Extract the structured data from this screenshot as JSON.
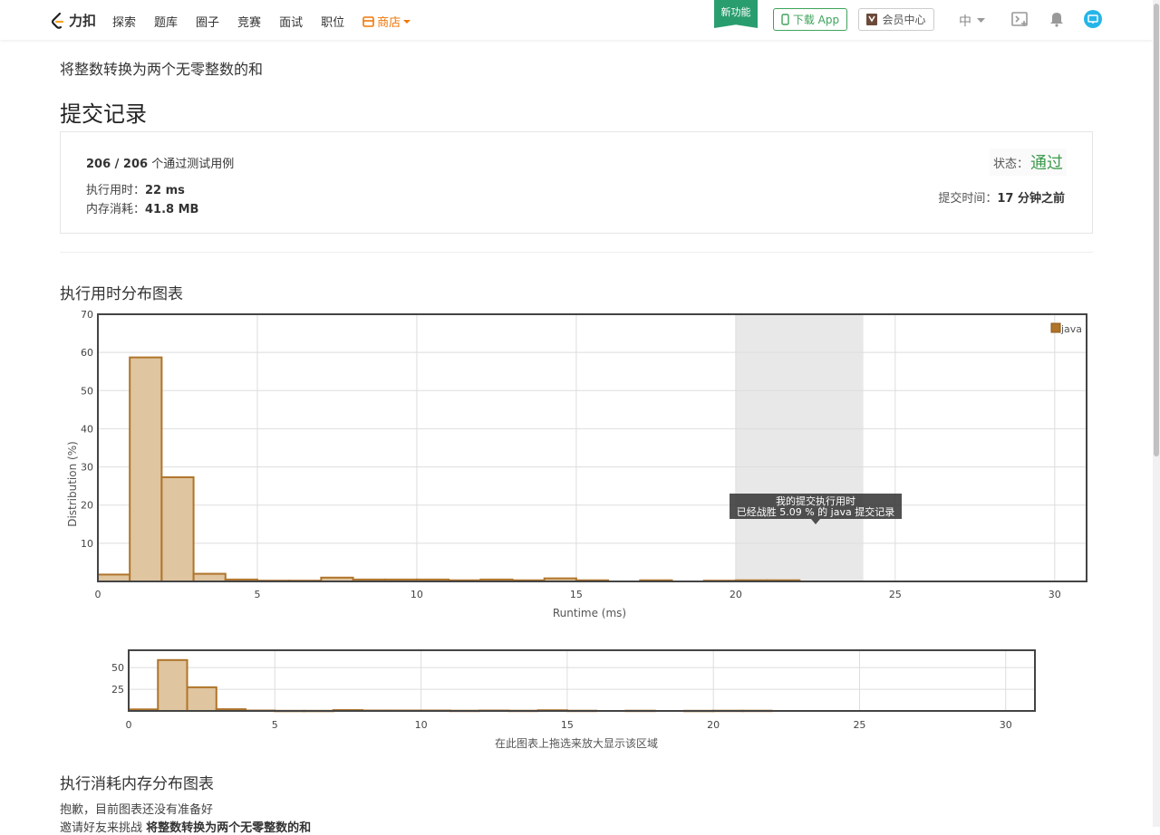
{
  "brand": {
    "name": "力扣"
  },
  "nav": {
    "items": [
      "探索",
      "题库",
      "圈子",
      "竞赛",
      "面试",
      "职位"
    ],
    "store": "商店"
  },
  "header": {
    "new_feature": "新功能",
    "download_app": "下载 App",
    "vip_center": "会员中心",
    "lang": "中"
  },
  "problem": {
    "title": "将整数转换为两个无零整数的和"
  },
  "page": {
    "title": "提交记录"
  },
  "result": {
    "passed": "206 / 206",
    "passed_suffix": "个通过测试用例",
    "runtime_label": "执行用时：",
    "runtime_value": "22 ms",
    "memory_label": "内存消耗：",
    "memory_value": "41.8 MB",
    "status_label": "状态：",
    "status_value": "通过",
    "submit_time_label": "提交时间：",
    "submit_time_value": "17 分钟之前"
  },
  "runtime_section": {
    "title": "执行用时分布图表",
    "nav_hint": "在此图表上拖选来放大显示该区域"
  },
  "memory_section": {
    "title": "执行消耗内存分布图表",
    "sorry": "抱歉，目前图表还没有准备好",
    "invite_prefix": "邀请好友来挑战",
    "invite_problem": "将整数转换为两个无零整数的和"
  },
  "colors": {
    "accent": "#3c9a4c",
    "bar_fill": "#dfc5a0",
    "bar_stroke": "#b0742a",
    "store": "#f0780a"
  },
  "chart_data": [
    {
      "type": "bar",
      "xlabel": "Runtime (ms)",
      "ylabel": "Distribution (%)",
      "xlim": [
        0,
        31
      ],
      "ylim": [
        0,
        70
      ],
      "xticks": [
        0,
        5,
        10,
        15,
        20,
        25,
        30
      ],
      "yticks": [
        10,
        20,
        30,
        40,
        50,
        60,
        70
      ],
      "grid": true,
      "legend": "top-right",
      "series": [
        {
          "name": "java",
          "bins": [
            {
              "x0": 0,
              "x1": 1,
              "y": 1.8
            },
            {
              "x0": 1,
              "x1": 2,
              "y": 58.7
            },
            {
              "x0": 2,
              "x1": 3,
              "y": 27.3
            },
            {
              "x0": 3,
              "x1": 4,
              "y": 2.0
            },
            {
              "x0": 4,
              "x1": 5,
              "y": 0.5
            },
            {
              "x0": 5,
              "x1": 6,
              "y": 0.2
            },
            {
              "x0": 6,
              "x1": 7,
              "y": 0.2
            },
            {
              "x0": 7,
              "x1": 8,
              "y": 1.0
            },
            {
              "x0": 8,
              "x1": 9,
              "y": 0.5
            },
            {
              "x0": 9,
              "x1": 10,
              "y": 0.5
            },
            {
              "x0": 10,
              "x1": 11,
              "y": 0.5
            },
            {
              "x0": 11,
              "x1": 12,
              "y": 0.3
            },
            {
              "x0": 12,
              "x1": 13,
              "y": 0.5
            },
            {
              "x0": 13,
              "x1": 14,
              "y": 0.3
            },
            {
              "x0": 14,
              "x1": 15,
              "y": 0.8
            },
            {
              "x0": 15,
              "x1": 16,
              "y": 0.3
            },
            {
              "x0": 17,
              "x1": 18,
              "y": 0.3
            },
            {
              "x0": 19,
              "x1": 20,
              "y": 0.2
            },
            {
              "x0": 20,
              "x1": 21,
              "y": 0.3
            },
            {
              "x0": 21,
              "x1": 22,
              "y": 0.3
            }
          ]
        }
      ],
      "highlight": {
        "x0": 20,
        "x1": 24
      },
      "tooltip": {
        "line1": "我的提交执行用时",
        "line2": "已经战胜 5.09 % 的 java 提交记录"
      }
    },
    {
      "type": "bar",
      "xlim": [
        0,
        31
      ],
      "ylim": [
        0,
        70
      ],
      "xticks": [
        0,
        5,
        10,
        15,
        20,
        25,
        30
      ],
      "yticks": [
        25,
        50
      ],
      "grid": true
    }
  ]
}
